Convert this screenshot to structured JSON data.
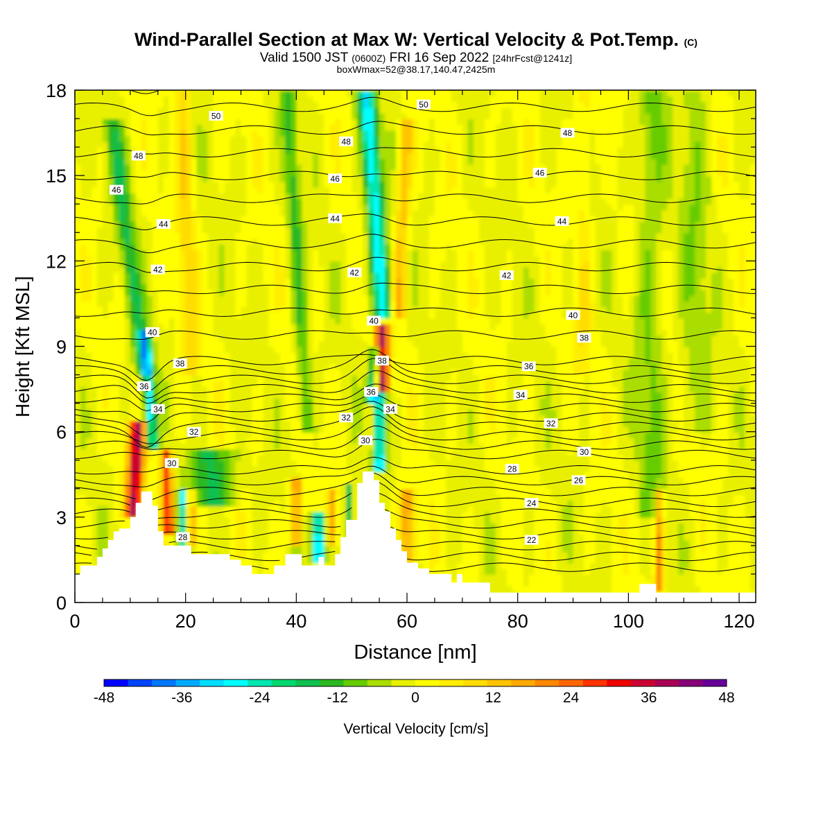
{
  "chart_data": {
    "type": "heatmap",
    "title": "Wind-Parallel Section at Max W: Vertical Velocity & Pot.Temp.",
    "title_mark": "(C)",
    "subtitle_main": "Valid 1500 JST",
    "subtitle_zulu": "(0600Z)",
    "subtitle_date": "FRI 16 Sep 2022",
    "subtitle_fcst": "[24hrFcst@1241z]",
    "subtitle2": "boxWmax=52@38.17,140.47,2425m",
    "xlabel": "Distance [nm]",
    "ylabel": "Height [Kft MSL]",
    "xlim": [
      0,
      123
    ],
    "ylim": [
      0,
      18
    ],
    "xticks": [
      0,
      20,
      40,
      60,
      80,
      100,
      120
    ],
    "yticks": [
      0,
      3,
      6,
      9,
      12,
      15,
      18
    ],
    "colorbar": {
      "label": "Vertical Velocity [cm/s]",
      "range": [
        -48,
        48
      ],
      "tick_labels": [
        -48,
        -36,
        -24,
        -12,
        0,
        12,
        24,
        36,
        48
      ],
      "colors": [
        "#0000ff",
        "#0044ff",
        "#0077ff",
        "#00aaff",
        "#00ddff",
        "#00ffff",
        "#00e6b0",
        "#00d870",
        "#10c050",
        "#2ab820",
        "#66cc00",
        "#aadd00",
        "#e8f000",
        "#ffff00",
        "#ffee00",
        "#ffdd00",
        "#ffc400",
        "#ffaa00",
        "#ff8800",
        "#ff6600",
        "#ff3300",
        "#ee0000",
        "#cc0033",
        "#aa0055",
        "#880077",
        "#660099"
      ]
    },
    "terrain_kft": [
      [
        0,
        1.0
      ],
      [
        1,
        1.0
      ],
      [
        1,
        1.3
      ],
      [
        4,
        1.3
      ],
      [
        4,
        1.6
      ],
      [
        5,
        1.6
      ],
      [
        5,
        1.9
      ],
      [
        6,
        1.9
      ],
      [
        6,
        2.2
      ],
      [
        7,
        2.2
      ],
      [
        7,
        2.5
      ],
      [
        8,
        2.5
      ],
      [
        8,
        2.6
      ],
      [
        10,
        2.6
      ],
      [
        10,
        3.0
      ],
      [
        11,
        3.0
      ],
      [
        11,
        3.5
      ],
      [
        12,
        3.5
      ],
      [
        12,
        3.9
      ],
      [
        14,
        3.9
      ],
      [
        14,
        3.4
      ],
      [
        15,
        3.4
      ],
      [
        15,
        2.5
      ],
      [
        16,
        2.5
      ],
      [
        16,
        2.0
      ],
      [
        21,
        2.0
      ],
      [
        21,
        1.7
      ],
      [
        28,
        1.7
      ],
      [
        28,
        1.5
      ],
      [
        30,
        1.5
      ],
      [
        30,
        1.3
      ],
      [
        32,
        1.3
      ],
      [
        32,
        1.0
      ],
      [
        36,
        1.0
      ],
      [
        36,
        1.3
      ],
      [
        38,
        1.3
      ],
      [
        38,
        1.7
      ],
      [
        41,
        1.7
      ],
      [
        41,
        1.3
      ],
      [
        44,
        1.3
      ],
      [
        44,
        1.6
      ],
      [
        45,
        1.6
      ],
      [
        45,
        1.3
      ],
      [
        47,
        1.3
      ],
      [
        47,
        1.7
      ],
      [
        48,
        1.7
      ],
      [
        48,
        2.3
      ],
      [
        49,
        2.3
      ],
      [
        49,
        2.9
      ],
      [
        51,
        2.9
      ],
      [
        51,
        4.2
      ],
      [
        52,
        4.2
      ],
      [
        52,
        4.6
      ],
      [
        54,
        4.6
      ],
      [
        54,
        4.3
      ],
      [
        55,
        4.3
      ],
      [
        55,
        3.5
      ],
      [
        56,
        3.5
      ],
      [
        56,
        3.2
      ],
      [
        57,
        3.2
      ],
      [
        57,
        2.6
      ],
      [
        58,
        2.6
      ],
      [
        58,
        2.2
      ],
      [
        59,
        2.2
      ],
      [
        59,
        1.8
      ],
      [
        60,
        1.8
      ],
      [
        60,
        1.4
      ],
      [
        62,
        1.4
      ],
      [
        62,
        1.2
      ],
      [
        64,
        1.2
      ],
      [
        64,
        1.0
      ],
      [
        68,
        1.0
      ],
      [
        68,
        0.7
      ],
      [
        69,
        0.7
      ],
      [
        69,
        1.0
      ],
      [
        70,
        1.0
      ],
      [
        70,
        0.7
      ],
      [
        75,
        0.7
      ],
      [
        75,
        0.35
      ],
      [
        102,
        0.35
      ],
      [
        102,
        0.65
      ],
      [
        105,
        0.65
      ],
      [
        105,
        0.35
      ],
      [
        123,
        0.35
      ]
    ],
    "theta_labels": [
      {
        "text": "50",
        "x": 25.5,
        "y": 17.1
      },
      {
        "text": "50",
        "x": 63,
        "y": 17.5
      },
      {
        "text": "48",
        "x": 11.5,
        "y": 15.7
      },
      {
        "text": "48",
        "x": 49,
        "y": 16.2
      },
      {
        "text": "48",
        "x": 89,
        "y": 16.5
      },
      {
        "text": "46",
        "x": 7.5,
        "y": 14.5
      },
      {
        "text": "46",
        "x": 47,
        "y": 14.9
      },
      {
        "text": "46",
        "x": 84,
        "y": 15.1
      },
      {
        "text": "44",
        "x": 16,
        "y": 13.3
      },
      {
        "text": "44",
        "x": 47,
        "y": 13.5
      },
      {
        "text": "44",
        "x": 88,
        "y": 13.4
      },
      {
        "text": "42",
        "x": 15,
        "y": 11.7
      },
      {
        "text": "42",
        "x": 50.5,
        "y": 11.6
      },
      {
        "text": "42",
        "x": 78,
        "y": 11.5
      },
      {
        "text": "40",
        "x": 14,
        "y": 9.5
      },
      {
        "text": "40",
        "x": 54,
        "y": 9.9
      },
      {
        "text": "40",
        "x": 90,
        "y": 10.1
      },
      {
        "text": "38",
        "x": 19,
        "y": 8.4
      },
      {
        "text": "38",
        "x": 55.5,
        "y": 8.5
      },
      {
        "text": "38",
        "x": 92,
        "y": 9.3
      },
      {
        "text": "36",
        "x": 12.5,
        "y": 7.6
      },
      {
        "text": "36",
        "x": 53.5,
        "y": 7.4
      },
      {
        "text": "36",
        "x": 82,
        "y": 8.3
      },
      {
        "text": "34",
        "x": 15,
        "y": 6.8
      },
      {
        "text": "34",
        "x": 57,
        "y": 6.8
      },
      {
        "text": "34",
        "x": 80.5,
        "y": 7.3
      },
      {
        "text": "32",
        "x": 21.5,
        "y": 6.0
      },
      {
        "text": "32",
        "x": 49,
        "y": 6.5
      },
      {
        "text": "32",
        "x": 86,
        "y": 6.3
      },
      {
        "text": "30",
        "x": 17.5,
        "y": 4.9
      },
      {
        "text": "30",
        "x": 52.5,
        "y": 5.7
      },
      {
        "text": "30",
        "x": 92,
        "y": 5.3
      },
      {
        "text": "28",
        "x": 19.5,
        "y": 2.3
      },
      {
        "text": "28",
        "x": 79,
        "y": 4.7
      },
      {
        "text": "26",
        "x": 91,
        "y": 4.3
      },
      {
        "text": "24",
        "x": 82.5,
        "y": 3.5
      },
      {
        "text": "22",
        "x": 82.5,
        "y": 2.2
      }
    ]
  }
}
